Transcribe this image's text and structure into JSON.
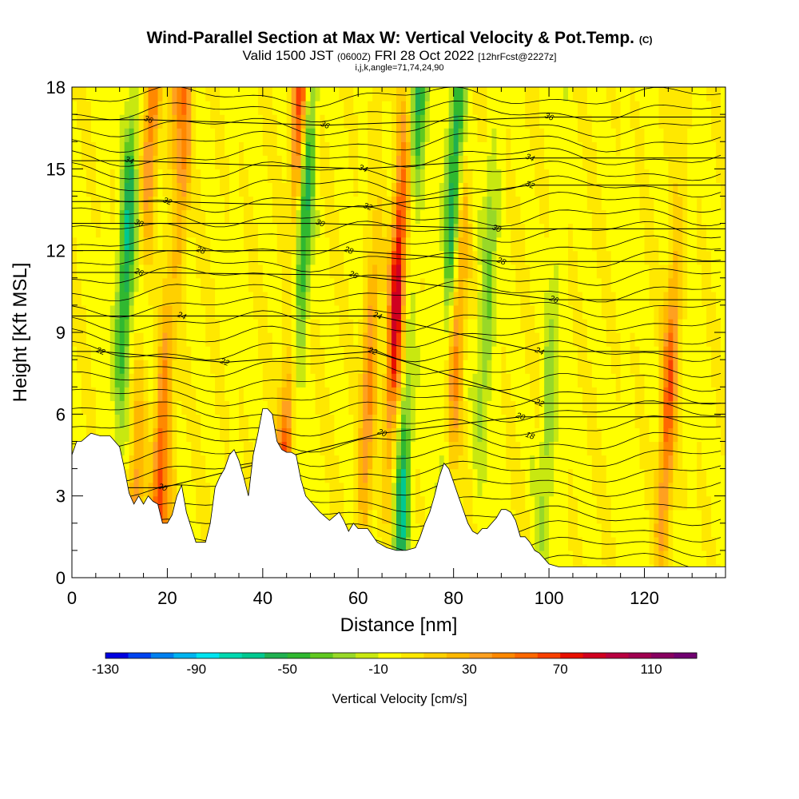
{
  "chart_data": {
    "type": "heatmap",
    "title": "Wind-Parallel Section at Max W: Vertical Velocity & Pot.Temp.",
    "title_mark": "(C)",
    "subtitle_main": "Valid 1500 JST",
    "subtitle_utc": "(0600Z)",
    "subtitle_date": "FRI 28 Oct 2022",
    "subtitle_fcst": "[12hrFcst@2227z]",
    "subtitle2": "i,j,k,angle=71,74,24,90",
    "xlabel": "Distance [nm]",
    "ylabel": "Height [Kft MSL]",
    "xlim": [
      0,
      137
    ],
    "ylim": [
      0,
      18
    ],
    "x_ticks": [
      "0",
      "20",
      "40",
      "60",
      "80",
      "100",
      "120"
    ],
    "y_ticks": [
      "0",
      "3",
      "6",
      "9",
      "12",
      "15",
      "18"
    ],
    "colorbar": {
      "title": "Vertical Velocity [cm/s]",
      "min": -130,
      "max": 130,
      "step": 10,
      "tick_labels": [
        "-130",
        "-90",
        "-50",
        "-10",
        "30",
        "70",
        "110"
      ],
      "colors": [
        "#0000e0",
        "#0044f0",
        "#0080f0",
        "#00b4f0",
        "#00e4f0",
        "#00d8b0",
        "#00c890",
        "#20b050",
        "#30b830",
        "#60c820",
        "#98d828",
        "#c8e810",
        "#ffff00",
        "#ffe800",
        "#ffd000",
        "#ffb800",
        "#ffa020",
        "#ff8800",
        "#ff6800",
        "#f84000",
        "#e81000",
        "#d00020",
        "#b80040",
        "#a00050",
        "#880060",
        "#700070"
      ]
    },
    "updraft_cores": [
      {
        "x": 10,
        "w": -60,
        "note": "downdraft column"
      },
      {
        "x": 14,
        "w": 55
      },
      {
        "x": 19,
        "w": 60
      },
      {
        "x": 21,
        "w": 40
      },
      {
        "x": 45,
        "w": 85
      },
      {
        "x": 47,
        "w": -55
      },
      {
        "x": 62,
        "w": 45
      },
      {
        "x": 67,
        "w": 90
      },
      {
        "x": 70,
        "w": -60
      },
      {
        "x": 78,
        "w": -60
      },
      {
        "x": 80,
        "w": 45
      },
      {
        "x": 86,
        "w": -30
      },
      {
        "x": 100,
        "w": -25
      },
      {
        "x": 125,
        "w": 60
      }
    ],
    "theta_contour_labels": [
      {
        "label": "36",
        "x": 16,
        "y": 16.8
      },
      {
        "label": "36",
        "x": 53,
        "y": 16.6
      },
      {
        "label": "36",
        "x": 100,
        "y": 16.9
      },
      {
        "label": "34",
        "x": 12,
        "y": 15.3
      },
      {
        "label": "34",
        "x": 61,
        "y": 15.0
      },
      {
        "label": "34",
        "x": 96,
        "y": 15.4
      },
      {
        "label": "32",
        "x": 20,
        "y": 13.8
      },
      {
        "label": "32",
        "x": 62,
        "y": 13.6
      },
      {
        "label": "32",
        "x": 96,
        "y": 14.4
      },
      {
        "label": "30",
        "x": 14,
        "y": 13.0
      },
      {
        "label": "30",
        "x": 52,
        "y": 13.0
      },
      {
        "label": "30",
        "x": 89,
        "y": 12.8
      },
      {
        "label": "28",
        "x": 27,
        "y": 12.0
      },
      {
        "label": "28",
        "x": 58,
        "y": 12.0
      },
      {
        "label": "28",
        "x": 90,
        "y": 11.6
      },
      {
        "label": "26",
        "x": 14,
        "y": 11.2
      },
      {
        "label": "26",
        "x": 59,
        "y": 11.1
      },
      {
        "label": "26",
        "x": 101,
        "y": 10.2
      },
      {
        "label": "24",
        "x": 23,
        "y": 9.6
      },
      {
        "label": "24",
        "x": 64,
        "y": 9.6
      },
      {
        "label": "24",
        "x": 98,
        "y": 8.3
      },
      {
        "label": "22",
        "x": 6,
        "y": 8.3
      },
      {
        "label": "22",
        "x": 32,
        "y": 7.9
      },
      {
        "label": "22",
        "x": 63,
        "y": 8.3
      },
      {
        "label": "22",
        "x": 98,
        "y": 6.4
      },
      {
        "label": "20",
        "x": 65,
        "y": 5.3
      },
      {
        "label": "20",
        "x": 94,
        "y": 5.9
      },
      {
        "label": "20",
        "x": 19,
        "y": 3.3
      },
      {
        "label": "18",
        "x": 96,
        "y": 5.2
      }
    ],
    "terrain_profile": {
      "x": [
        0,
        1,
        2,
        4,
        6,
        8,
        10,
        11,
        12,
        13,
        14,
        15,
        16,
        17,
        18,
        19,
        20,
        21,
        22,
        23,
        24,
        26,
        28,
        29,
        30,
        31,
        32,
        33,
        34,
        35,
        36,
        37,
        38,
        39,
        40,
        41,
        42,
        43,
        44,
        45,
        46,
        47,
        48,
        49,
        50,
        52,
        54,
        56,
        57,
        58,
        59,
        60,
        62,
        64,
        66,
        68,
        70,
        72,
        73,
        74,
        75,
        76,
        77,
        78,
        79,
        80,
        81,
        82,
        83,
        84,
        85,
        86,
        87,
        88,
        89,
        90,
        91,
        92,
        93,
        94,
        95,
        96,
        97,
        98,
        100,
        102,
        104,
        106,
        110,
        120,
        130,
        137
      ],
      "y": [
        4.5,
        5.0,
        5.0,
        5.3,
        5.2,
        5.2,
        4.8,
        4.0,
        3.1,
        2.7,
        3.0,
        2.7,
        3.0,
        2.8,
        2.7,
        2.0,
        2.0,
        2.3,
        3.0,
        3.4,
        2.4,
        1.3,
        1.3,
        2.0,
        3.3,
        3.7,
        4.0,
        4.5,
        4.7,
        4.3,
        3.7,
        3.0,
        4.5,
        5.3,
        6.2,
        6.2,
        6.0,
        5.0,
        4.7,
        4.6,
        4.6,
        4.5,
        3.6,
        3.0,
        2.8,
        2.4,
        2.1,
        2.4,
        2.1,
        1.7,
        2.0,
        1.8,
        1.8,
        1.3,
        1.1,
        1.0,
        1.0,
        1.1,
        1.5,
        2.0,
        2.4,
        3.0,
        3.7,
        4.2,
        4.0,
        3.5,
        3.0,
        2.5,
        2.0,
        1.7,
        1.6,
        1.8,
        1.8,
        2.0,
        2.2,
        2.5,
        2.5,
        2.4,
        2.1,
        1.5,
        1.5,
        1.3,
        1.0,
        0.9,
        0.5,
        0.4,
        0.4,
        0.4,
        0.4,
        0.4,
        0.4,
        0.4
      ]
    }
  }
}
